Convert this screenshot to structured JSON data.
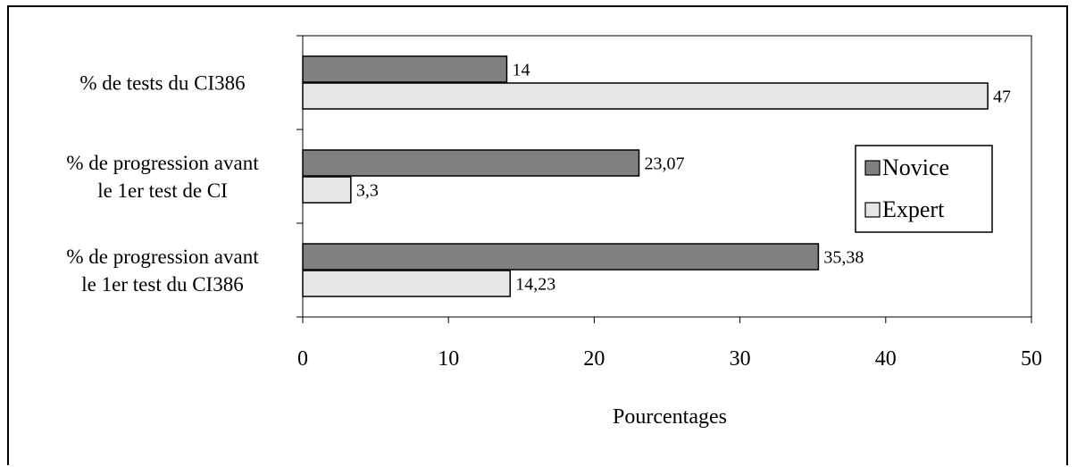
{
  "chart_data": {
    "type": "bar",
    "orientation": "horizontal",
    "categories": [
      [
        "% de tests du CI386"
      ],
      [
        "% de progression avant",
        "le 1er test de CI"
      ],
      [
        "% de progression avant",
        "le 1er test du CI386"
      ]
    ],
    "series": [
      {
        "name": "Novice",
        "values": [
          14,
          23.07,
          35.38
        ],
        "labels": [
          "14",
          "23,07",
          "35,38"
        ],
        "color": "#808080"
      },
      {
        "name": "Expert",
        "values": [
          47,
          3.3,
          14.23
        ],
        "labels": [
          "47",
          "3,3",
          "14,23"
        ],
        "color": "#e6e6e6"
      }
    ],
    "xlabel": "Pourcentages",
    "xlim": [
      0,
      50
    ],
    "xticks": [
      0,
      10,
      20,
      30,
      40,
      50
    ],
    "grid": false,
    "legend_position": "right"
  }
}
